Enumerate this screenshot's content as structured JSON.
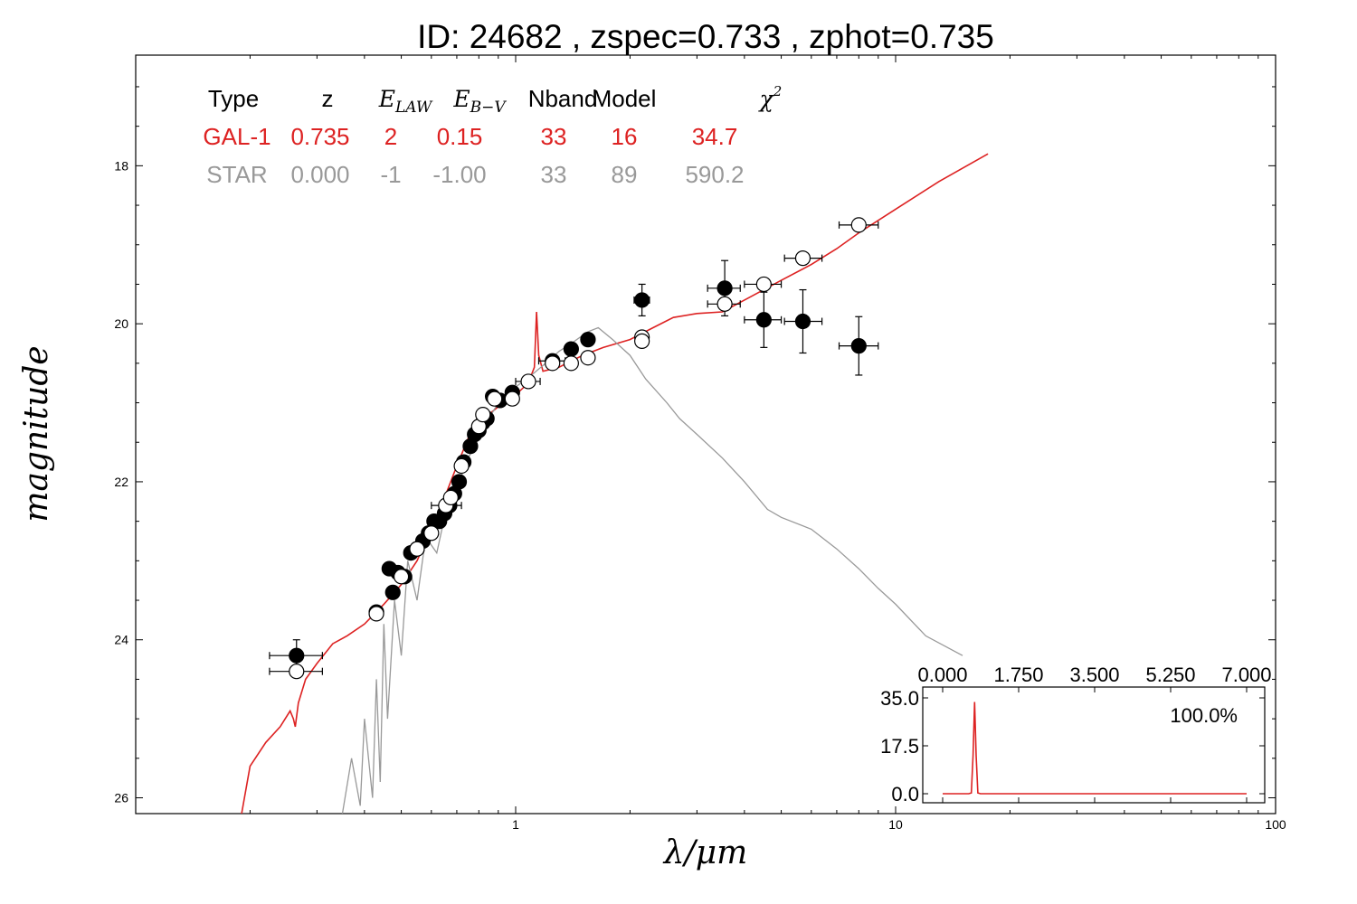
{
  "title": "ID:  24682 , zspec=0.733 , zphot=0.735",
  "colors": {
    "galaxy": "#dd2222",
    "star": "#999999",
    "axis": "#000000"
  },
  "chart_data": {
    "type": "scatter",
    "xlabel": "λ/μm",
    "ylabel": "magnitude",
    "xscale": "log",
    "xlim": [
      0.1,
      100
    ],
    "ylim": [
      26.2,
      16.6
    ],
    "y_inverted": true,
    "xticks": [
      {
        "v": 1,
        "label": "1"
      },
      {
        "v": 10,
        "label": "10"
      },
      {
        "v": 100,
        "label": "100"
      }
    ],
    "yticks": [
      {
        "v": 18,
        "label": "18"
      },
      {
        "v": 20,
        "label": "20"
      },
      {
        "v": 22,
        "label": "22"
      },
      {
        "v": 24,
        "label": "24"
      },
      {
        "v": 26,
        "label": "26"
      }
    ],
    "legend_table": {
      "headers": [
        "Type",
        "z",
        "E_LAW",
        "E_B−V",
        "Nband",
        "Model",
        "χ²"
      ],
      "rows": [
        {
          "name": "galaxy",
          "cells": [
            "GAL-1",
            "0.735",
            "2",
            "0.15",
            "33",
            "16",
            "34.7"
          ]
        },
        {
          "name": "star",
          "cells": [
            "STAR",
            "0.000",
            "-1",
            "-1.00",
            "33",
            "89",
            "590.2"
          ]
        }
      ]
    },
    "series": [
      {
        "name": "GAL-1",
        "kind": "line",
        "points": [
          [
            0.19,
            26.2
          ],
          [
            0.2,
            25.6
          ],
          [
            0.22,
            25.3
          ],
          [
            0.24,
            25.1
          ],
          [
            0.255,
            24.9
          ],
          [
            0.26,
            25.0
          ],
          [
            0.263,
            25.1
          ],
          [
            0.268,
            24.8
          ],
          [
            0.28,
            24.5
          ],
          [
            0.3,
            24.3
          ],
          [
            0.33,
            24.05
          ],
          [
            0.36,
            23.95
          ],
          [
            0.4,
            23.8
          ],
          [
            0.45,
            23.55
          ],
          [
            0.5,
            23.3
          ],
          [
            0.55,
            23.0
          ],
          [
            0.6,
            22.6
          ],
          [
            0.65,
            22.2
          ],
          [
            0.7,
            21.8
          ],
          [
            0.75,
            21.45
          ],
          [
            0.8,
            21.25
          ],
          [
            0.9,
            21.05
          ],
          [
            1.0,
            20.9
          ],
          [
            1.08,
            20.75
          ],
          [
            1.12,
            20.55
          ],
          [
            1.135,
            19.85
          ],
          [
            1.15,
            20.4
          ],
          [
            1.18,
            20.6
          ],
          [
            1.3,
            20.55
          ],
          [
            1.5,
            20.4
          ],
          [
            1.7,
            20.3
          ],
          [
            2.0,
            20.2
          ],
          [
            2.3,
            20.05
          ],
          [
            2.6,
            19.92
          ],
          [
            3.0,
            19.87
          ],
          [
            3.5,
            19.85
          ],
          [
            4.0,
            19.7
          ],
          [
            5.0,
            19.45
          ],
          [
            6.0,
            19.25
          ],
          [
            7.0,
            19.05
          ],
          [
            8.0,
            18.85
          ],
          [
            10.0,
            18.55
          ],
          [
            13.0,
            18.2
          ],
          [
            17.5,
            17.85
          ]
        ]
      },
      {
        "name": "STAR",
        "kind": "line",
        "points": [
          [
            0.35,
            26.2
          ],
          [
            0.37,
            25.5
          ],
          [
            0.39,
            26.1
          ],
          [
            0.4,
            25.0
          ],
          [
            0.42,
            26.0
          ],
          [
            0.43,
            24.5
          ],
          [
            0.44,
            25.8
          ],
          [
            0.45,
            23.8
          ],
          [
            0.46,
            25.0
          ],
          [
            0.48,
            23.5
          ],
          [
            0.5,
            24.2
          ],
          [
            0.52,
            23.0
          ],
          [
            0.55,
            23.5
          ],
          [
            0.58,
            22.7
          ],
          [
            0.62,
            22.9
          ],
          [
            0.66,
            22.3
          ],
          [
            0.7,
            22.1
          ],
          [
            0.74,
            21.75
          ],
          [
            0.8,
            21.45
          ],
          [
            0.85,
            21.2
          ],
          [
            0.9,
            21.0
          ],
          [
            0.95,
            20.95
          ],
          [
            1.0,
            20.8
          ],
          [
            1.1,
            20.65
          ],
          [
            1.2,
            20.5
          ],
          [
            1.3,
            20.35
          ],
          [
            1.4,
            20.25
          ],
          [
            1.55,
            20.1
          ],
          [
            1.65,
            20.05
          ],
          [
            1.8,
            20.2
          ],
          [
            2.0,
            20.4
          ],
          [
            2.2,
            20.7
          ],
          [
            2.5,
            21.0
          ],
          [
            2.7,
            21.2
          ],
          [
            3.0,
            21.4
          ],
          [
            3.5,
            21.7
          ],
          [
            4.0,
            22.0
          ],
          [
            4.6,
            22.35
          ],
          [
            5.0,
            22.45
          ],
          [
            6.0,
            22.6
          ],
          [
            7.0,
            22.85
          ],
          [
            8.0,
            23.1
          ],
          [
            9.0,
            23.35
          ],
          [
            10.0,
            23.55
          ],
          [
            12.0,
            23.95
          ],
          [
            15.0,
            24.2
          ]
        ]
      },
      {
        "name": "observed",
        "kind": "points",
        "marker": "filled",
        "points": [
          {
            "x": 0.265,
            "y": 24.2,
            "xerr": [
              0.225,
              0.31
            ],
            "yerr": 0.2
          },
          {
            "x": 0.43,
            "y": 23.65,
            "xerr": [
              0.42,
              0.44
            ],
            "yerr": 0.05
          },
          {
            "x": 0.465,
            "y": 23.1,
            "xerr": [
              0.455,
              0.475
            ],
            "yerr": 0.05
          },
          {
            "x": 0.475,
            "y": 23.4,
            "xerr": [
              0.465,
              0.485
            ],
            "yerr": 0.05
          },
          {
            "x": 0.49,
            "y": 23.15,
            "xerr": [
              0.48,
              0.5
            ],
            "yerr": 0.05
          },
          {
            "x": 0.51,
            "y": 23.2,
            "xerr": [
              0.5,
              0.52
            ],
            "yerr": 0.05
          },
          {
            "x": 0.53,
            "y": 22.9,
            "xerr": [
              0.52,
              0.54
            ],
            "yerr": 0.05
          },
          {
            "x": 0.55,
            "y": 22.85,
            "xerr": [
              0.54,
              0.56
            ],
            "yerr": 0.05
          },
          {
            "x": 0.57,
            "y": 22.75,
            "xerr": [
              0.56,
              0.58
            ],
            "yerr": 0.05
          },
          {
            "x": 0.59,
            "y": 22.65,
            "xerr": [
              0.58,
              0.6
            ],
            "yerr": 0.05
          },
          {
            "x": 0.61,
            "y": 22.5,
            "xerr": [
              0.6,
              0.62
            ],
            "yerr": 0.05
          },
          {
            "x": 0.63,
            "y": 22.5,
            "xerr": [
              0.62,
              0.64
            ],
            "yerr": 0.05
          },
          {
            "x": 0.65,
            "y": 22.4,
            "xerr": [
              0.64,
              0.66
            ],
            "yerr": 0.05
          },
          {
            "x": 0.67,
            "y": 22.3,
            "xerr": [
              0.66,
              0.68
            ],
            "yerr": 0.05
          },
          {
            "x": 0.69,
            "y": 22.15,
            "xerr": [
              0.68,
              0.7
            ],
            "yerr": 0.05
          },
          {
            "x": 0.71,
            "y": 22.0,
            "xerr": [
              0.7,
              0.72
            ],
            "yerr": 0.05
          },
          {
            "x": 0.73,
            "y": 21.75,
            "xerr": [
              0.72,
              0.74
            ],
            "yerr": 0.05
          },
          {
            "x": 0.76,
            "y": 21.55,
            "xerr": [
              0.75,
              0.77
            ],
            "yerr": 0.05
          },
          {
            "x": 0.78,
            "y": 21.4,
            "xerr": [
              0.77,
              0.79
            ],
            "yerr": 0.05
          },
          {
            "x": 0.8,
            "y": 21.35,
            "xerr": [
              0.79,
              0.81
            ],
            "yerr": 0.05
          },
          {
            "x": 0.82,
            "y": 21.25,
            "xerr": [
              0.81,
              0.83
            ],
            "yerr": 0.05
          },
          {
            "x": 0.84,
            "y": 21.2,
            "xerr": [
              0.83,
              0.85
            ],
            "yerr": 0.05
          },
          {
            "x": 0.87,
            "y": 20.92,
            "xerr": [
              0.86,
              0.88
            ],
            "yerr": 0.05
          },
          {
            "x": 0.91,
            "y": 20.97,
            "xerr": [
              0.9,
              0.92
            ],
            "yerr": 0.05
          },
          {
            "x": 0.98,
            "y": 20.87,
            "xerr": [
              0.97,
              0.99
            ],
            "yerr": 0.05
          },
          {
            "x": 1.25,
            "y": 20.47,
            "xerr": [
              1.15,
              1.35
            ],
            "yerr": 0.05
          },
          {
            "x": 1.4,
            "y": 20.32,
            "xerr": [
              1.35,
              1.45
            ],
            "yerr": 0.05
          },
          {
            "x": 1.55,
            "y": 20.2,
            "xerr": [
              1.5,
              1.6
            ],
            "yerr": 0.05
          },
          {
            "x": 2.15,
            "y": 19.7,
            "xerr": [
              2.05,
              2.25
            ],
            "yerr": 0.2
          },
          {
            "x": 3.55,
            "y": 19.55,
            "xerr": [
              3.2,
              3.9
            ],
            "yerr": 0.35
          },
          {
            "x": 4.5,
            "y": 19.95,
            "xerr": [
              4.0,
              5.0
            ],
            "yerr": 0.35
          },
          {
            "x": 5.7,
            "y": 19.97,
            "xerr": [
              5.1,
              6.4
            ],
            "yerr": 0.4
          },
          {
            "x": 8.0,
            "y": 20.28,
            "xerr": [
              7.1,
              9.0
            ],
            "yerr": 0.37
          }
        ]
      },
      {
        "name": "model photometry",
        "kind": "points",
        "marker": "open",
        "points": [
          {
            "x": 0.265,
            "y": 24.4,
            "xerr": [
              0.225,
              0.31
            ]
          },
          {
            "x": 0.43,
            "y": 23.67
          },
          {
            "x": 0.5,
            "y": 23.2
          },
          {
            "x": 0.55,
            "y": 22.85
          },
          {
            "x": 0.6,
            "y": 22.65
          },
          {
            "x": 0.655,
            "y": 22.3,
            "xerr": [
              0.6,
              0.72
            ]
          },
          {
            "x": 0.675,
            "y": 22.2
          },
          {
            "x": 0.72,
            "y": 21.8
          },
          {
            "x": 0.8,
            "y": 21.3
          },
          {
            "x": 0.82,
            "y": 21.15
          },
          {
            "x": 0.88,
            "y": 20.95
          },
          {
            "x": 0.98,
            "y": 20.95
          },
          {
            "x": 1.08,
            "y": 20.73,
            "xerr": [
              1.0,
              1.16
            ]
          },
          {
            "x": 1.25,
            "y": 20.5
          },
          {
            "x": 1.4,
            "y": 20.5
          },
          {
            "x": 1.55,
            "y": 20.43
          },
          {
            "x": 2.15,
            "y": 20.17
          },
          {
            "x": 2.15,
            "y": 20.22
          },
          {
            "x": 3.55,
            "y": 19.75,
            "xerr": [
              3.2,
              3.9
            ]
          },
          {
            "x": 4.5,
            "y": 19.5,
            "xerr": [
              4.0,
              5.0
            ]
          },
          {
            "x": 5.7,
            "y": 19.17,
            "xerr": [
              5.1,
              6.4
            ]
          },
          {
            "x": 8.0,
            "y": 18.75,
            "xerr": [
              7.1,
              9.0
            ]
          }
        ]
      }
    ],
    "inset": {
      "type": "line",
      "xlim": [
        0.0,
        7.0
      ],
      "ylim": [
        0.0,
        35.0
      ],
      "xticks": [
        "0.000",
        "1.750",
        "3.500",
        "5.250",
        "7.000"
      ],
      "yticks": [
        "0.0",
        "17.5",
        "35.0"
      ],
      "annotation": "100.0%",
      "points": [
        [
          0.0,
          0.0
        ],
        [
          0.6,
          0.0
        ],
        [
          0.66,
          0.3
        ],
        [
          0.7,
          14
        ],
        [
          0.735,
          33.5
        ],
        [
          0.77,
          14
        ],
        [
          0.81,
          0.3
        ],
        [
          0.87,
          0.0
        ],
        [
          7.0,
          0.0
        ]
      ]
    }
  }
}
